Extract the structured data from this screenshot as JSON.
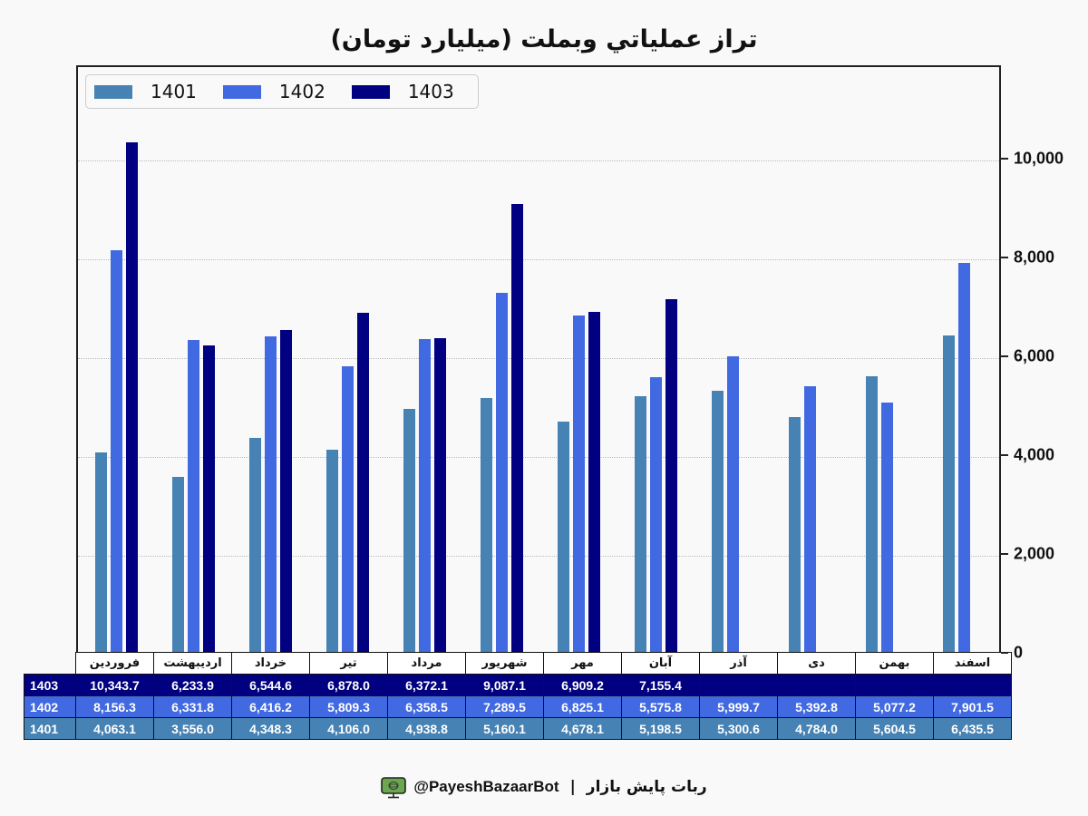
{
  "chart_data": {
    "type": "bar",
    "title": "تراز عملياتي وبملت (ميليارد تومان)",
    "categories": [
      "فروردین",
      "اردیبهشت",
      "خرداد",
      "تیر",
      "مرداد",
      "شهریور",
      "مهر",
      "آبان",
      "آذر",
      "دی",
      "بهمن",
      "اسفند"
    ],
    "series": [
      {
        "name": "1401",
        "color": "#4682B4",
        "values": [
          4063.1,
          3556.0,
          4348.3,
          4106.0,
          4938.8,
          5160.1,
          4678.1,
          5198.5,
          5300.6,
          4784.0,
          5604.5,
          6435.5
        ]
      },
      {
        "name": "1402",
        "color": "#4169E1",
        "values": [
          8156.3,
          6331.8,
          6416.2,
          5809.3,
          6358.5,
          7289.5,
          6825.1,
          5575.8,
          5999.7,
          5392.8,
          5077.2,
          7901.5
        ]
      },
      {
        "name": "1403",
        "color": "#000080",
        "values": [
          10343.7,
          6233.9,
          6544.6,
          6878.0,
          6372.1,
          9087.1,
          6909.2,
          7155.4,
          null,
          null,
          null,
          null
        ]
      }
    ],
    "xlabel": "",
    "ylabel": "",
    "ylim": [
      0,
      11900
    ],
    "yticks": [
      0,
      2000,
      4000,
      6000,
      8000,
      10000
    ],
    "ytick_labels": [
      "0",
      "2,000",
      "4,000",
      "6,000",
      "8,000",
      "10,000"
    ],
    "y_axis_position": "right",
    "grid": true,
    "legend_position": "upper left"
  },
  "title": "تراز عملياتي وبملت (ميليارد تومان)",
  "legend": [
    {
      "label": "1401",
      "color": "#4682B4"
    },
    {
      "label": "1402",
      "color": "#4169E1"
    },
    {
      "label": "1403",
      "color": "#000080"
    }
  ],
  "table": {
    "months": [
      "فروردین",
      "اردیبهشت",
      "خرداد",
      "تیر",
      "مرداد",
      "شهریور",
      "مهر",
      "آبان",
      "آذر",
      "دی",
      "بهمن",
      "اسفند"
    ],
    "rows": [
      {
        "label": "1403",
        "color": "#000080",
        "cells": [
          "10,343.7",
          "6,233.9",
          "6,544.6",
          "6,878.0",
          "6,372.1",
          "9,087.1",
          "6,909.2",
          "7,155.4",
          "",
          "",
          "",
          ""
        ]
      },
      {
        "label": "1402",
        "color": "#4169E1",
        "cells": [
          "8,156.3",
          "6,331.8",
          "6,416.2",
          "5,809.3",
          "6,358.5",
          "7,289.5",
          "6,825.1",
          "5,575.8",
          "5,999.7",
          "5,392.8",
          "5,077.2",
          "7,901.5"
        ]
      },
      {
        "label": "1401",
        "color": "#4682B4",
        "cells": [
          "4,063.1",
          "3,556.0",
          "4,348.3",
          "4,106.0",
          "4,938.8",
          "5,160.1",
          "4,678.1",
          "5,198.5",
          "5,300.6",
          "4,784.0",
          "5,604.5",
          "6,435.5"
        ]
      }
    ]
  },
  "footer": {
    "handle": "@PayeshBazaarBot",
    "separator": "|",
    "bot_name": "ربات پایش بازار",
    "icon": "monitor-bot-icon"
  }
}
